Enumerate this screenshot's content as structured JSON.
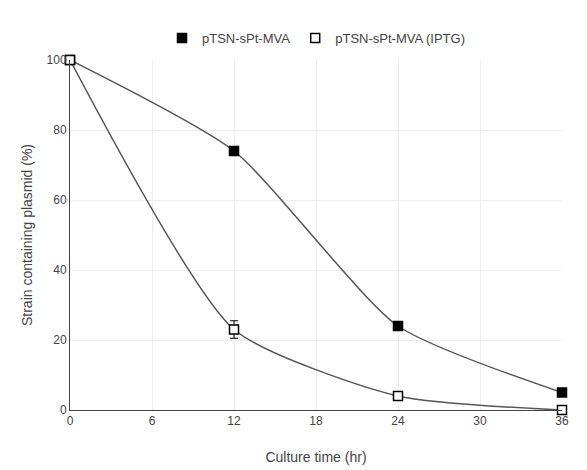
{
  "chart_data": {
    "type": "line",
    "x_label": "Culture time (hr)",
    "y_label": "Strain containing plasmid (%)",
    "x": [
      0,
      12,
      24,
      36
    ],
    "color": "#555555",
    "series": [
      {
        "name": "pTSN-sPt-MVA",
        "color": "#000000",
        "marker": "square",
        "values": [
          100,
          74,
          24,
          5
        ]
      },
      {
        "name": "pTSN-sPt-MVA (IPTG)",
        "color": "#000000",
        "marker": "square-open",
        "values": [
          100,
          23,
          4,
          0
        ],
        "error": [
          0,
          2.5,
          0,
          0
        ]
      }
    ],
    "xlim": [
      0,
      36
    ],
    "xticks": [
      0,
      6,
      12,
      18,
      24,
      30,
      36
    ],
    "ylim": [
      0,
      100
    ],
    "yticks": [
      0,
      20,
      40,
      60,
      80,
      100
    ],
    "grid": true,
    "legend": "top"
  }
}
